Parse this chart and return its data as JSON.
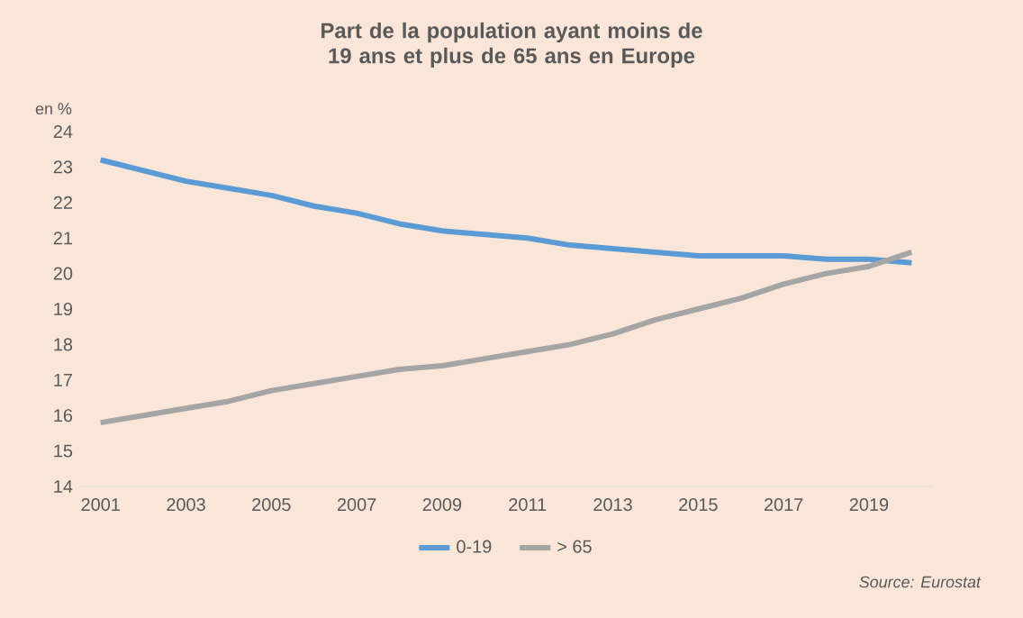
{
  "chart_data": {
    "type": "line",
    "title": "Part de la population ayant moins de 19 ans et plus de 65 ans en Europe",
    "ylabel": "en %",
    "x": [
      2001,
      2002,
      2003,
      2004,
      2005,
      2006,
      2007,
      2008,
      2009,
      2010,
      2011,
      2012,
      2013,
      2014,
      2015,
      2016,
      2017,
      2018,
      2019,
      2020
    ],
    "series": [
      {
        "name": "0-19",
        "color": "#5b9bd5",
        "values": [
          23.2,
          22.9,
          22.6,
          22.4,
          22.2,
          21.9,
          21.7,
          21.4,
          21.2,
          21.1,
          21.0,
          20.8,
          20.7,
          20.6,
          20.5,
          20.5,
          20.5,
          20.4,
          20.4,
          20.3
        ]
      },
      {
        "name": "> 65",
        "color": "#a5a5a5",
        "values": [
          15.8,
          16.0,
          16.2,
          16.4,
          16.7,
          16.9,
          17.1,
          17.3,
          17.4,
          17.6,
          17.8,
          18.0,
          18.3,
          18.7,
          19.0,
          19.3,
          19.7,
          20.0,
          20.2,
          20.6
        ]
      }
    ],
    "xlim": [
      2000.5,
      2020.5
    ],
    "xticks": [
      2001,
      2003,
      2005,
      2007,
      2009,
      2011,
      2013,
      2015,
      2017,
      2019
    ],
    "ylim": [
      14,
      24
    ],
    "yticks": [
      14,
      15,
      16,
      17,
      18,
      19,
      20,
      21,
      22,
      23,
      24
    ],
    "grid": false,
    "legend": "bottom",
    "marker": "none",
    "line_style": "solid",
    "annotations": [
      "Source: Eurostat"
    ]
  }
}
